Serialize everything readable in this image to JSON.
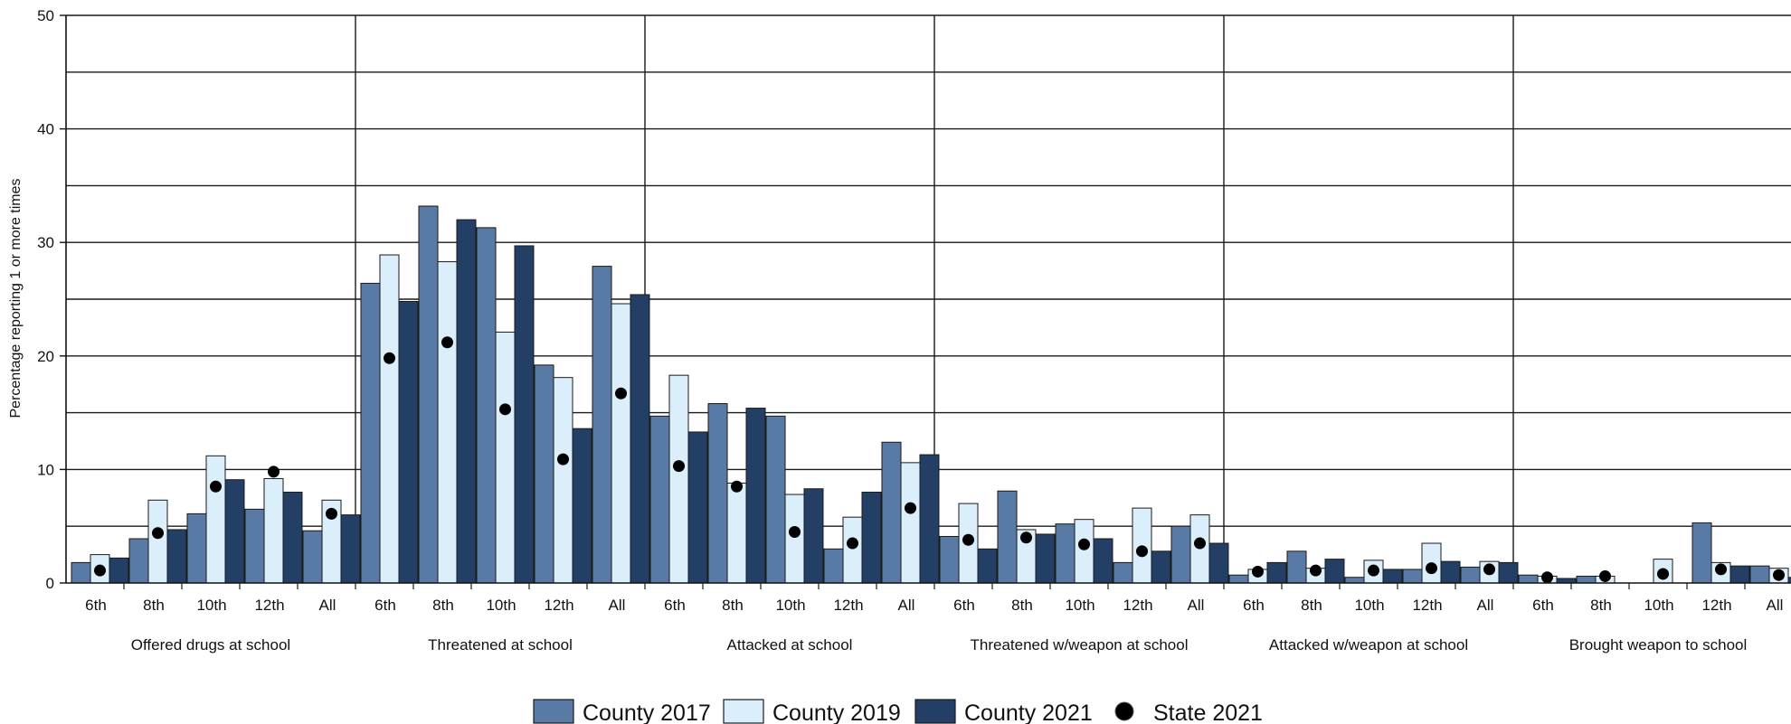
{
  "chart_data": {
    "type": "bar",
    "ylabel": "Percentage reporting 1 or more times",
    "ylim": [
      0,
      50
    ],
    "yticks": [
      0,
      10,
      20,
      30,
      40,
      50
    ],
    "grid": true,
    "legend_position": "bottom-center",
    "colors": {
      "County 2017": "#587aa4",
      "County 2019": "#dbeefb",
      "County 2021": "#243f66",
      "State 2021": "#000000"
    },
    "legend": [
      {
        "label": "County 2017",
        "kind": "bar"
      },
      {
        "label": "County 2019",
        "kind": "bar"
      },
      {
        "label": "County 2021",
        "kind": "bar"
      },
      {
        "label": "State 2021",
        "kind": "dot"
      }
    ],
    "grades": [
      "6th",
      "8th",
      "10th",
      "12th",
      "All"
    ],
    "groups": [
      {
        "name": "Offered drugs at school",
        "series": {
          "County 2017": [
            1.8,
            3.9,
            6.1,
            6.5,
            4.6
          ],
          "County 2019": [
            2.5,
            7.3,
            11.2,
            9.2,
            7.3
          ],
          "County 2021": [
            2.2,
            4.7,
            9.1,
            8.0,
            6.0
          ],
          "State 2021": [
            1.1,
            4.4,
            8.5,
            9.8,
            6.1
          ]
        }
      },
      {
        "name": "Threatened at school",
        "series": {
          "County 2017": [
            26.4,
            33.2,
            31.3,
            19.2,
            27.9
          ],
          "County 2019": [
            28.9,
            28.3,
            22.1,
            18.1,
            24.6
          ],
          "County 2021": [
            24.8,
            32.0,
            29.7,
            13.6,
            25.4
          ],
          "State 2021": [
            19.8,
            21.2,
            15.3,
            10.9,
            16.7
          ]
        }
      },
      {
        "name": "Attacked at school",
        "series": {
          "County 2017": [
            14.7,
            15.8,
            14.7,
            3.0,
            12.4
          ],
          "County 2019": [
            18.3,
            8.8,
            7.8,
            5.8,
            10.6
          ],
          "County 2021": [
            13.3,
            15.4,
            8.3,
            8.0,
            11.3
          ],
          "State 2021": [
            10.3,
            8.5,
            4.5,
            3.5,
            6.6
          ]
        }
      },
      {
        "name": "Threatened w/weapon at school",
        "series": {
          "County 2017": [
            4.1,
            8.1,
            5.2,
            1.8,
            5.0
          ],
          "County 2019": [
            7.0,
            4.7,
            5.6,
            6.6,
            6.0
          ],
          "County 2021": [
            3.0,
            4.3,
            3.9,
            2.8,
            3.5
          ],
          "State 2021": [
            3.8,
            4.0,
            3.4,
            2.8,
            3.5
          ]
        }
      },
      {
        "name": "Attacked w/weapon at school",
        "series": {
          "County 2017": [
            0.7,
            2.8,
            0.5,
            1.2,
            1.4
          ],
          "County 2019": [
            1.2,
            1.3,
            2.0,
            3.5,
            1.9
          ],
          "County 2021": [
            1.8,
            2.1,
            1.2,
            1.9,
            1.8
          ],
          "State 2021": [
            1.0,
            1.1,
            1.1,
            1.3,
            1.2
          ]
        }
      },
      {
        "name": "Brought weapon to school",
        "series": {
          "County 2017": [
            0.7,
            0.6,
            0.0,
            5.3,
            1.5
          ],
          "County 2019": [
            0.6,
            0.6,
            2.1,
            1.8,
            1.3
          ],
          "County 2021": [
            0.4,
            0.0,
            0.0,
            1.5,
            0.5
          ],
          "State 2021": [
            0.5,
            0.6,
            0.8,
            1.2,
            0.7
          ]
        }
      }
    ]
  }
}
